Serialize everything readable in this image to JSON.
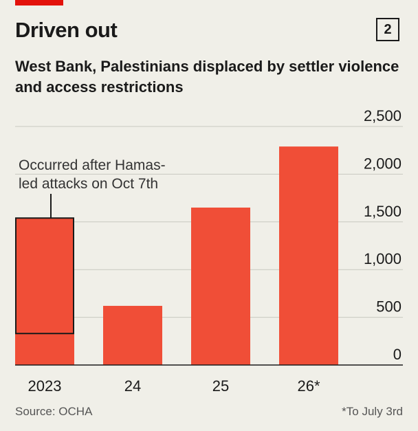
{
  "header": {
    "title": "Driven out",
    "badge": "2",
    "subtitle": "West Bank, Palestinians displaced by settler violence and access restrictions"
  },
  "footer": {
    "source": "Source: OCHA",
    "footnote": "*To July 3rd"
  },
  "colors": {
    "bar": "#f04e37",
    "background": "#f0efe8",
    "grid": "#c8c8c0",
    "text": "#1a1a1a",
    "accent": "#e3120b"
  },
  "chart_data": {
    "type": "bar",
    "categories": [
      "2023",
      "24",
      "25",
      "26*"
    ],
    "values": [
      1540,
      620,
      1650,
      2290
    ],
    "y_ticks": [
      "0",
      "500",
      "1,000",
      "1,500",
      "2,000",
      "2,500"
    ],
    "ylim": [
      0,
      2500
    ],
    "grid": true,
    "y_axis_side": "right",
    "annotation": {
      "text_line1": "Occurred after Hamas-",
      "text_line2": "led attacks on Oct 7th",
      "category": "2023",
      "range": [
        330,
        1540
      ]
    }
  }
}
